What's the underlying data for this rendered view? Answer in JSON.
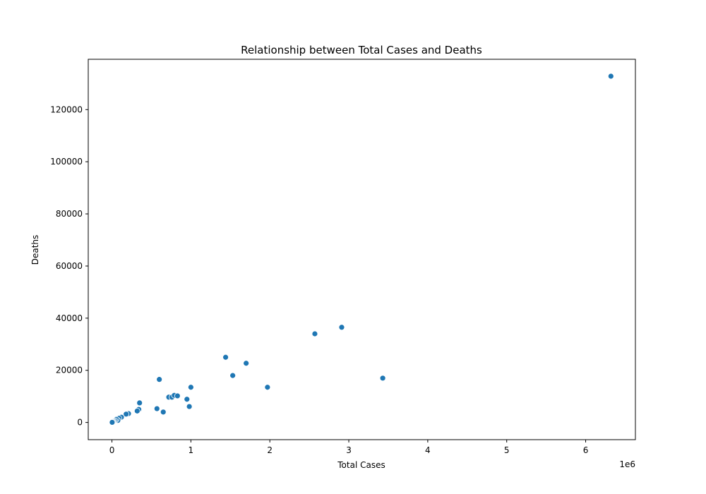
{
  "chart_data": {
    "type": "scatter",
    "title": "Relationship between Total Cases and Deaths",
    "xlabel": "Total Cases",
    "ylabel": "Deaths",
    "x_offset_text": "1e6",
    "x_unit_scale": 1000000,
    "xlim": [
      -300000,
      6630000
    ],
    "ylim": [
      -6600,
      139300
    ],
    "x_ticks": [
      0,
      1000000,
      2000000,
      3000000,
      4000000,
      5000000,
      6000000
    ],
    "x_tick_labels": [
      "0",
      "1",
      "2",
      "3",
      "4",
      "5",
      "6"
    ],
    "y_ticks": [
      0,
      20000,
      40000,
      60000,
      80000,
      100000,
      120000
    ],
    "y_tick_labels": [
      "0",
      "20000",
      "40000",
      "60000",
      "80000",
      "100000",
      "120000"
    ],
    "grid": false,
    "color": "#1f77b4",
    "points": [
      {
        "x": 6320000,
        "y": 132800
      },
      {
        "x": 2910000,
        "y": 36500
      },
      {
        "x": 2570000,
        "y": 34000
      },
      {
        "x": 3430000,
        "y": 17000
      },
      {
        "x": 1440000,
        "y": 25000
      },
      {
        "x": 1700000,
        "y": 22700
      },
      {
        "x": 1530000,
        "y": 18000
      },
      {
        "x": 1970000,
        "y": 13500
      },
      {
        "x": 600000,
        "y": 16500
      },
      {
        "x": 1000000,
        "y": 13500
      },
      {
        "x": 720000,
        "y": 9700
      },
      {
        "x": 760000,
        "y": 9700
      },
      {
        "x": 790000,
        "y": 10400
      },
      {
        "x": 830000,
        "y": 10200
      },
      {
        "x": 950000,
        "y": 8900
      },
      {
        "x": 980000,
        "y": 6100
      },
      {
        "x": 350000,
        "y": 7500
      },
      {
        "x": 570000,
        "y": 5300
      },
      {
        "x": 650000,
        "y": 4000
      },
      {
        "x": 340000,
        "y": 5000
      },
      {
        "x": 320000,
        "y": 4400
      },
      {
        "x": 210000,
        "y": 3400
      },
      {
        "x": 180000,
        "y": 3200
      },
      {
        "x": 120000,
        "y": 2000
      },
      {
        "x": 90000,
        "y": 1600
      },
      {
        "x": 75000,
        "y": 800
      },
      {
        "x": 55000,
        "y": 1200
      },
      {
        "x": 40000,
        "y": 700
      },
      {
        "x": 25000,
        "y": 500
      },
      {
        "x": 15000,
        "y": 300
      },
      {
        "x": 8000,
        "y": 150
      },
      {
        "x": 3000,
        "y": 50
      }
    ]
  }
}
